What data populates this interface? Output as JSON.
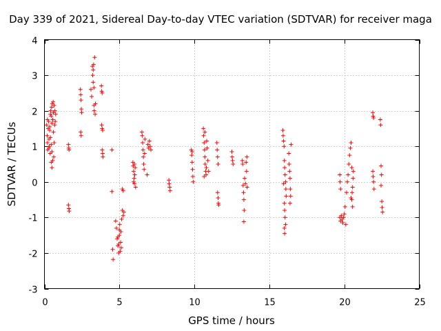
{
  "chart_data": {
    "type": "scatter",
    "title": "Day 339 of 2021, Sidereal Day-to-day VTEC variation (SDTVAR) for receiver maga",
    "xlabel": "GPS time / hours",
    "ylabel": "SDTVAR / TECUs",
    "xlim": [
      0,
      25
    ],
    "ylim": [
      -3,
      4
    ],
    "xticks": [
      0,
      5,
      10,
      15,
      20,
      25
    ],
    "yticks": [
      -3,
      -2,
      -1,
      0,
      1,
      2,
      3,
      4
    ],
    "grid": true,
    "marker": "+",
    "point_color": "#ff0000",
    "series": [
      {
        "name": "SDTVAR",
        "points": [
          [
            0.15,
            1.6
          ],
          [
            0.18,
            1.3
          ],
          [
            0.2,
            1.1
          ],
          [
            0.22,
            0.9
          ],
          [
            0.25,
            1.5
          ],
          [
            0.28,
            1.7
          ],
          [
            0.3,
            1.2
          ],
          [
            0.32,
            1.0
          ],
          [
            0.35,
            1.45
          ],
          [
            0.38,
            0.8
          ],
          [
            0.4,
            1.9
          ],
          [
            0.42,
            2.0
          ],
          [
            0.45,
            1.85
          ],
          [
            0.45,
            0.55
          ],
          [
            0.48,
            2.1
          ],
          [
            0.5,
            0.4
          ],
          [
            0.5,
            1.65
          ],
          [
            0.52,
            2.2
          ],
          [
            0.55,
            1.75
          ],
          [
            0.55,
            0.6
          ],
          [
            0.58,
            2.25
          ],
          [
            0.6,
            1.95
          ],
          [
            0.6,
            1.4
          ],
          [
            0.62,
            0.7
          ],
          [
            0.65,
            2.15
          ],
          [
            0.65,
            1.1
          ],
          [
            0.68,
            1.6
          ],
          [
            0.7,
            2.0
          ],
          [
            0.72,
            1.7
          ],
          [
            0.75,
            1.9
          ],
          [
            0.2,
            1.75
          ],
          [
            0.3,
            0.95
          ],
          [
            0.4,
            1.25
          ],
          [
            0.5,
            0.85
          ],
          [
            0.35,
            1.55
          ],
          [
            0.45,
            1.05
          ],
          [
            1.6,
            1.05
          ],
          [
            1.62,
            0.95
          ],
          [
            1.64,
            0.9
          ],
          [
            1.6,
            -0.65
          ],
          [
            1.63,
            -0.75
          ],
          [
            1.65,
            -0.82
          ],
          [
            2.4,
            2.6
          ],
          [
            2.42,
            2.45
          ],
          [
            2.44,
            2.3
          ],
          [
            2.46,
            2.05
          ],
          [
            2.48,
            1.95
          ],
          [
            2.42,
            1.4
          ],
          [
            2.45,
            1.3
          ],
          [
            3.1,
            2.6
          ],
          [
            3.15,
            2.4
          ],
          [
            3.2,
            3.25
          ],
          [
            3.22,
            3.0
          ],
          [
            3.25,
            2.8
          ],
          [
            3.28,
            3.3
          ],
          [
            3.3,
            2.15
          ],
          [
            3.32,
            2.0
          ],
          [
            3.35,
            3.5
          ],
          [
            3.38,
            1.9
          ],
          [
            3.4,
            2.2
          ],
          [
            3.3,
            2.65
          ],
          [
            3.25,
            3.15
          ],
          [
            3.8,
            2.7
          ],
          [
            3.82,
            2.55
          ],
          [
            3.85,
            2.5
          ],
          [
            3.82,
            1.6
          ],
          [
            3.85,
            1.5
          ],
          [
            3.88,
            1.45
          ],
          [
            3.85,
            0.9
          ],
          [
            3.88,
            0.8
          ],
          [
            3.9,
            0.7
          ],
          [
            4.5,
            0.9
          ],
          [
            4.5,
            -0.27
          ],
          [
            4.55,
            -1.9
          ],
          [
            4.58,
            -2.18
          ],
          [
            4.75,
            -1.1
          ],
          [
            4.8,
            -1.3
          ],
          [
            4.85,
            -1.6
          ],
          [
            4.9,
            -1.8
          ],
          [
            4.95,
            -2.0
          ],
          [
            5.0,
            -1.5
          ],
          [
            5.02,
            -1.2
          ],
          [
            5.05,
            -1.95
          ],
          [
            5.08,
            -1.7
          ],
          [
            5.1,
            -1.4
          ],
          [
            5.12,
            -1.85
          ],
          [
            5.15,
            -1.05
          ],
          [
            4.9,
            -1.55
          ],
          [
            4.95,
            -1.75
          ],
          [
            5.0,
            -1.35
          ],
          [
            5.2,
            -0.8
          ],
          [
            5.25,
            -0.95
          ],
          [
            5.3,
            -0.85
          ],
          [
            5.2,
            -0.2
          ],
          [
            5.25,
            -0.25
          ],
          [
            5.9,
            0.55
          ],
          [
            5.92,
            0.45
          ],
          [
            5.95,
            0.3
          ],
          [
            5.98,
            0.1
          ],
          [
            6.0,
            -0.05
          ],
          [
            6.02,
            0.2
          ],
          [
            6.05,
            0.4
          ],
          [
            6.08,
            -0.15
          ],
          [
            5.95,
            0.0
          ],
          [
            6.0,
            0.5
          ],
          [
            6.5,
            1.4
          ],
          [
            6.52,
            1.3
          ],
          [
            6.55,
            1.1
          ],
          [
            6.58,
            0.9
          ],
          [
            6.6,
            0.7
          ],
          [
            6.62,
            0.5
          ],
          [
            6.65,
            0.35
          ],
          [
            6.68,
            0.8
          ],
          [
            6.7,
            1.2
          ],
          [
            6.9,
            1.05
          ],
          [
            6.95,
            0.95
          ],
          [
            7.0,
            1.15
          ],
          [
            7.05,
            1.0
          ],
          [
            7.1,
            0.9
          ],
          [
            6.85,
            0.2
          ],
          [
            8.3,
            0.05
          ],
          [
            8.32,
            -0.05
          ],
          [
            8.35,
            -0.15
          ],
          [
            8.38,
            -0.25
          ],
          [
            9.8,
            0.9
          ],
          [
            9.82,
            0.75
          ],
          [
            9.85,
            0.55
          ],
          [
            9.88,
            0.35
          ],
          [
            9.9,
            0.15
          ],
          [
            9.92,
            0.0
          ],
          [
            9.85,
            0.85
          ],
          [
            10.6,
            1.5
          ],
          [
            10.62,
            1.3
          ],
          [
            10.65,
            1.1
          ],
          [
            10.68,
            0.9
          ],
          [
            10.7,
            0.7
          ],
          [
            10.72,
            0.5
          ],
          [
            10.75,
            0.3
          ],
          [
            10.78,
            0.2
          ],
          [
            10.8,
            0.4
          ],
          [
            10.82,
            1.15
          ],
          [
            10.85,
            0.95
          ],
          [
            10.9,
            0.6
          ],
          [
            10.95,
            0.3
          ],
          [
            10.7,
            1.4
          ],
          [
            10.65,
            0.15
          ],
          [
            11.5,
            1.1
          ],
          [
            11.52,
            0.9
          ],
          [
            11.55,
            0.7
          ],
          [
            11.58,
            0.5
          ],
          [
            11.55,
            -0.3
          ],
          [
            11.58,
            -0.45
          ],
          [
            11.6,
            -0.6
          ],
          [
            11.62,
            -0.65
          ],
          [
            12.5,
            0.85
          ],
          [
            12.52,
            0.7
          ],
          [
            12.55,
            0.6
          ],
          [
            12.58,
            0.5
          ],
          [
            13.2,
            0.6
          ],
          [
            13.22,
            0.5
          ],
          [
            13.25,
            -0.1
          ],
          [
            13.28,
            -0.3
          ],
          [
            13.3,
            -0.5
          ],
          [
            13.32,
            -0.8
          ],
          [
            13.3,
            -1.12
          ],
          [
            13.35,
            0.1
          ],
          [
            13.4,
            -0.05
          ],
          [
            13.45,
            0.55
          ],
          [
            13.5,
            0.7
          ],
          [
            13.48,
            0.3
          ],
          [
            13.52,
            -0.15
          ],
          [
            15.9,
            1.45
          ],
          [
            15.92,
            1.3
          ],
          [
            15.95,
            1.15
          ],
          [
            15.98,
            1.0
          ],
          [
            16.0,
            0.6
          ],
          [
            16.02,
            0.4
          ],
          [
            16.05,
            0.2
          ],
          [
            16.08,
            0.0
          ],
          [
            16.1,
            -0.2
          ],
          [
            16.12,
            -0.4
          ],
          [
            16.0,
            -0.6
          ],
          [
            16.02,
            -0.8
          ],
          [
            16.05,
            -1.0
          ],
          [
            16.08,
            -1.2
          ],
          [
            16.0,
            -1.3
          ],
          [
            16.02,
            -1.45
          ],
          [
            15.95,
            -0.05
          ],
          [
            16.3,
            0.8
          ],
          [
            16.32,
            0.5
          ],
          [
            16.35,
            0.3
          ],
          [
            16.38,
            0.1
          ],
          [
            16.4,
            -0.2
          ],
          [
            16.42,
            -0.4
          ],
          [
            16.38,
            -0.6
          ],
          [
            16.45,
            1.05
          ],
          [
            19.7,
            0.2
          ],
          [
            19.72,
            0.0
          ],
          [
            19.75,
            -0.2
          ],
          [
            19.7,
            -1.0
          ],
          [
            19.75,
            -1.1
          ],
          [
            19.8,
            -0.95
          ],
          [
            19.85,
            -1.05
          ],
          [
            19.9,
            -1.15
          ],
          [
            19.95,
            -1.0
          ],
          [
            20.0,
            -0.9
          ],
          [
            20.05,
            -0.7
          ],
          [
            20.1,
            -1.2
          ],
          [
            20.15,
            -0.3
          ],
          [
            20.2,
            0.0
          ],
          [
            20.25,
            0.2
          ],
          [
            20.3,
            0.5
          ],
          [
            20.35,
            0.75
          ],
          [
            20.4,
            0.95
          ],
          [
            20.45,
            1.1
          ],
          [
            20.5,
            -0.5
          ],
          [
            20.52,
            -0.3
          ],
          [
            20.55,
            -0.15
          ],
          [
            20.58,
            0.1
          ],
          [
            20.6,
            0.3
          ],
          [
            20.55,
            -0.7
          ],
          [
            20.5,
            0.4
          ],
          [
            20.45,
            -0.45
          ],
          [
            21.9,
            1.95
          ],
          [
            21.92,
            1.85
          ],
          [
            21.95,
            1.8
          ],
          [
            21.9,
            0.3
          ],
          [
            21.92,
            0.15
          ],
          [
            21.95,
            0.0
          ],
          [
            21.98,
            -0.2
          ],
          [
            22.4,
            1.75
          ],
          [
            22.42,
            1.6
          ],
          [
            22.45,
            0.45
          ],
          [
            22.48,
            0.2
          ],
          [
            22.45,
            -0.1
          ],
          [
            22.5,
            -0.55
          ],
          [
            22.52,
            -0.72
          ],
          [
            22.55,
            -0.85
          ]
        ]
      }
    ]
  }
}
